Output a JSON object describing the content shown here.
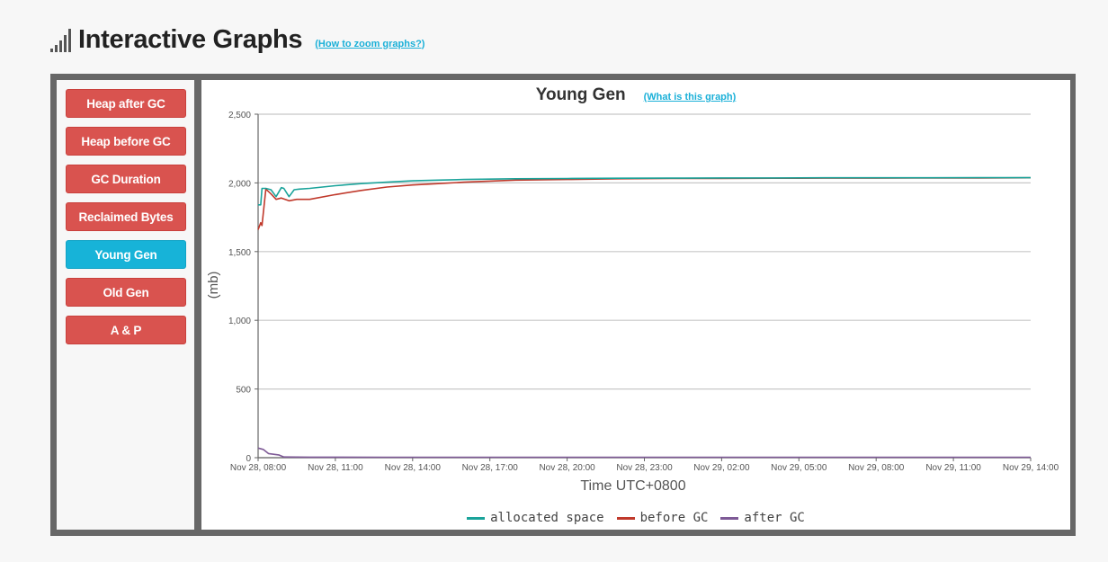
{
  "header": {
    "title": "Interactive Graphs",
    "zoom_link": "(How to zoom graphs?)"
  },
  "sidebar": {
    "items": [
      {
        "label": "Heap after GC",
        "active": false
      },
      {
        "label": "Heap before GC",
        "active": false
      },
      {
        "label": "GC Duration",
        "active": false
      },
      {
        "label": "Reclaimed Bytes",
        "active": false
      },
      {
        "label": "Young Gen",
        "active": true
      },
      {
        "label": "Old Gen",
        "active": false
      },
      {
        "label": "A & P",
        "active": false
      }
    ]
  },
  "chart": {
    "help_link": "(What is this graph)"
  },
  "chart_data": {
    "type": "line",
    "title": "Young Gen",
    "xlabel": "Time UTC+0800",
    "ylabel": "(mb)",
    "xlim": [
      0,
      30
    ],
    "ylim": [
      0,
      2500
    ],
    "yticks": [
      0,
      500,
      1000,
      1500,
      2000,
      2500
    ],
    "ytick_labels": [
      "0",
      "500",
      "1,000",
      "1,500",
      "2,000",
      "2,500"
    ],
    "xticks": [
      0,
      3,
      6,
      9,
      12,
      15,
      18,
      21,
      24,
      27,
      30
    ],
    "xtick_labels": [
      "Nov 28, 08:00",
      "Nov 28, 11:00",
      "Nov 28, 14:00",
      "Nov 28, 17:00",
      "Nov 28, 20:00",
      "Nov 28, 23:00",
      "Nov 29, 02:00",
      "Nov 29, 05:00",
      "Nov 29, 08:00",
      "Nov 29, 11:00",
      "Nov 29, 14:00"
    ],
    "grid": true,
    "legend_position": "bottom",
    "series": [
      {
        "name": "allocated space",
        "color": "#1aa39a",
        "x": [
          0,
          0.1,
          0.15,
          0.3,
          0.5,
          0.7,
          0.9,
          1.0,
          1.2,
          1.4,
          1.6,
          2,
          3,
          4,
          5,
          6,
          7,
          8,
          10,
          12,
          14,
          16,
          18,
          20,
          22,
          24,
          26,
          28,
          30
        ],
        "y": [
          1840,
          1840,
          1960,
          1960,
          1950,
          1900,
          1965,
          1960,
          1900,
          1950,
          1955,
          1960,
          1980,
          1995,
          2005,
          2015,
          2020,
          2025,
          2030,
          2032,
          2034,
          2035,
          2036,
          2036,
          2037,
          2037,
          2037,
          2038,
          2038
        ]
      },
      {
        "name": "before GC",
        "color": "#c0392b",
        "x": [
          0,
          0.1,
          0.15,
          0.3,
          0.5,
          0.7,
          0.9,
          1.2,
          1.5,
          2,
          3,
          4,
          5,
          6,
          7,
          8,
          10,
          12,
          14,
          16,
          18,
          20,
          22,
          24,
          26,
          28,
          30
        ],
        "y": [
          1660,
          1710,
          1690,
          1955,
          1920,
          1880,
          1890,
          1870,
          1880,
          1880,
          1915,
          1945,
          1970,
          1985,
          1995,
          2005,
          2020,
          2025,
          2030,
          2032,
          2033,
          2034,
          2035,
          2035,
          2036,
          2036,
          2037
        ]
      },
      {
        "name": "after GC",
        "color": "#7e5a96",
        "x": [
          0,
          0.2,
          0.4,
          0.6,
          0.8,
          1,
          2,
          5,
          10,
          15,
          20,
          25,
          30
        ],
        "y": [
          70,
          60,
          30,
          25,
          20,
          5,
          4,
          3,
          3,
          3,
          3,
          3,
          3
        ]
      }
    ]
  }
}
